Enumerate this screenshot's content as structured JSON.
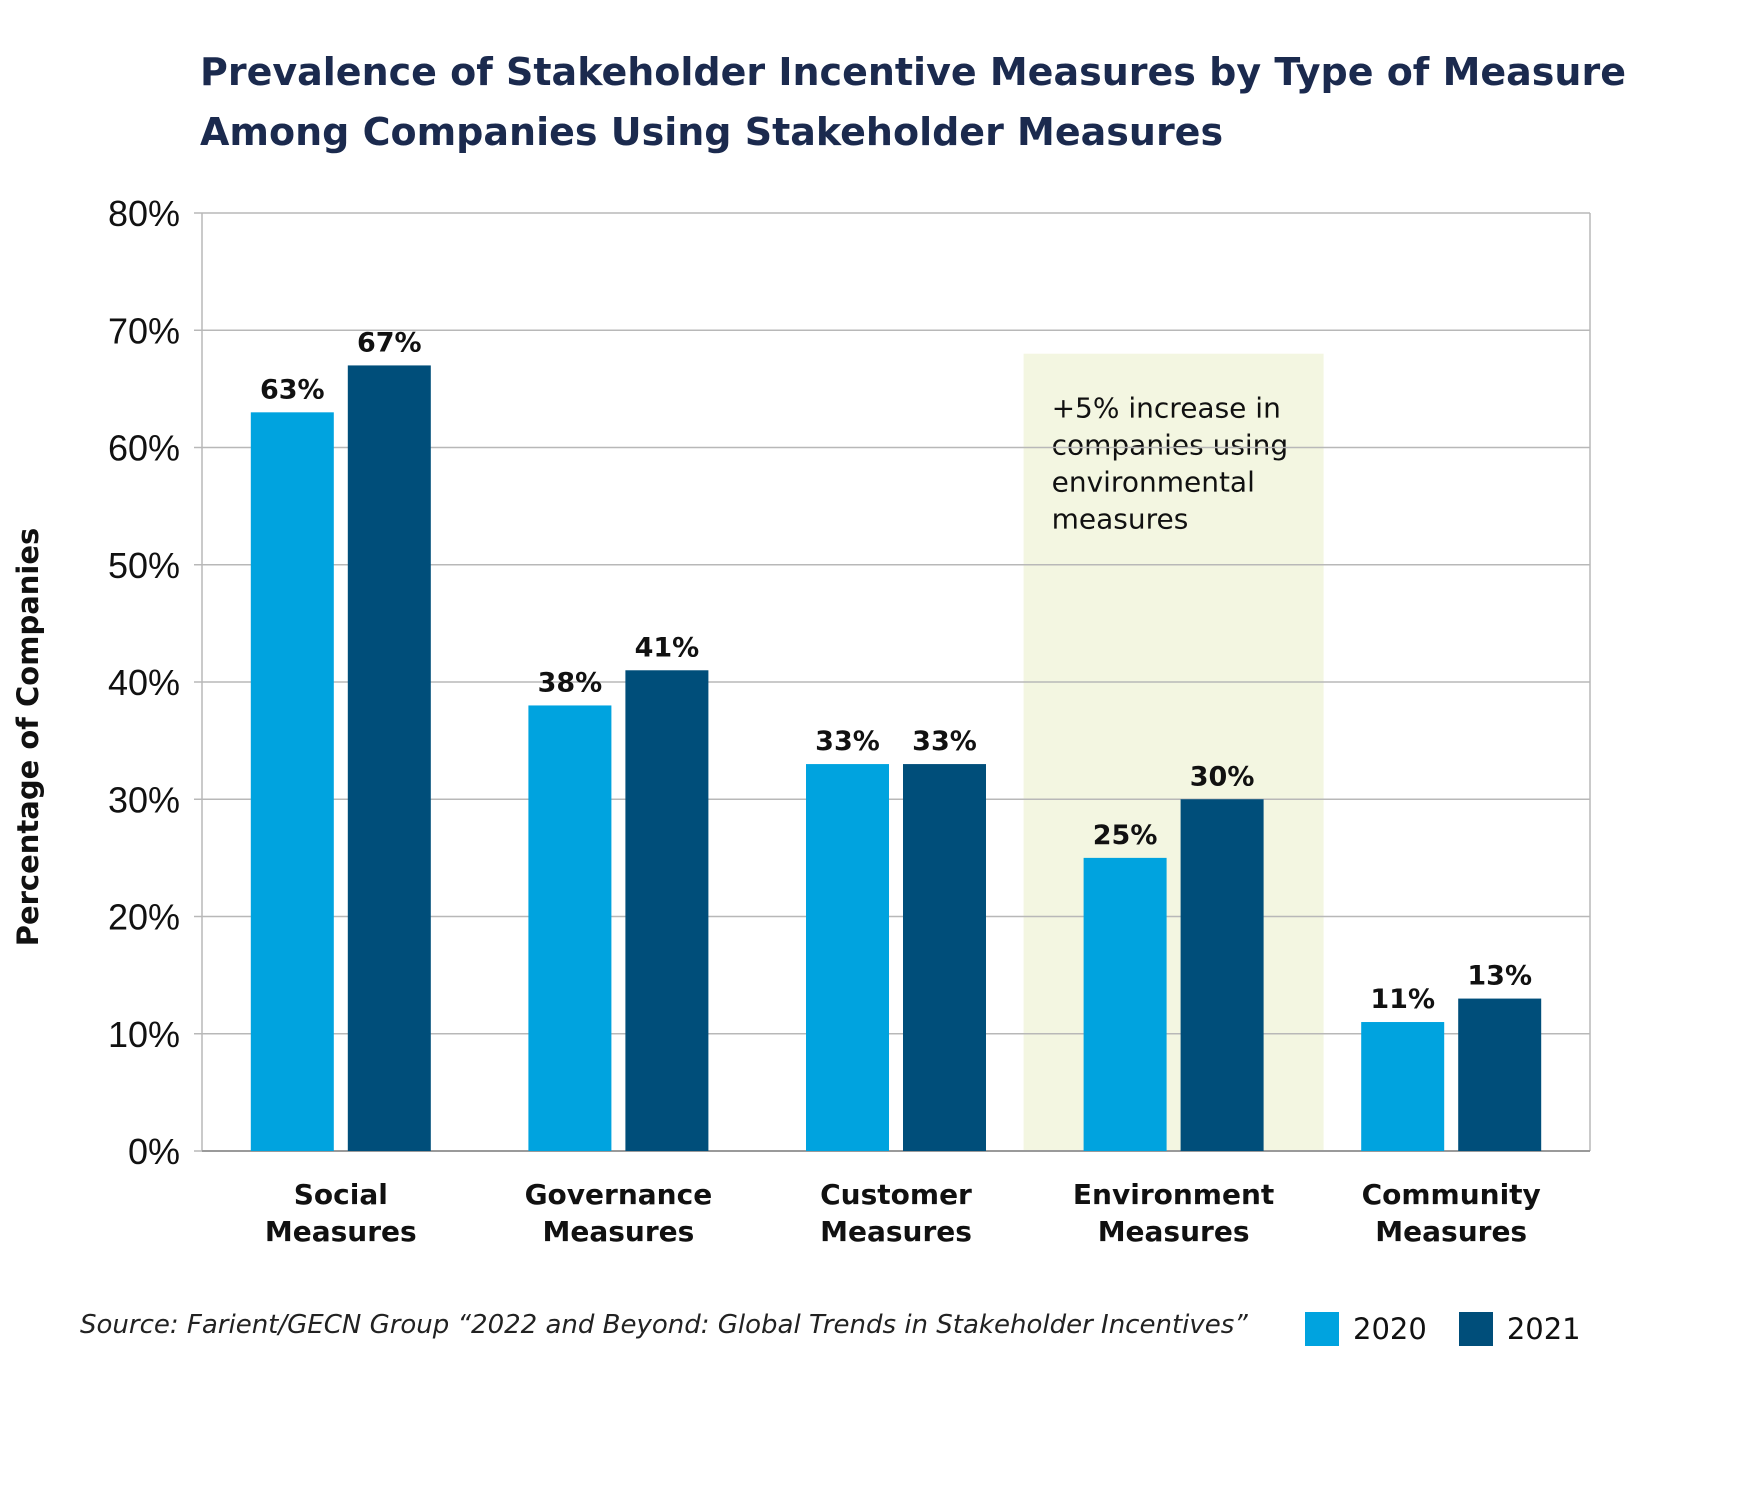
{
  "chart_data": {
    "type": "bar",
    "title": [
      "Prevalence of Stakeholder Incentive Measures by Type of Measure",
      "Among Companies Using Stakeholder Measures"
    ],
    "ylabel": "Percentage of Companies",
    "ylim": [
      0,
      80
    ],
    "yticks": [
      "0%",
      "10%",
      "20%",
      "30%",
      "40%",
      "50%",
      "60%",
      "70%",
      "80%"
    ],
    "categories": [
      [
        "Social",
        "Measures"
      ],
      [
        "Governance",
        "Measures"
      ],
      [
        "Customer",
        "Measures"
      ],
      [
        "Environment",
        "Measures"
      ],
      [
        "Community",
        "Measures"
      ]
    ],
    "series": [
      {
        "name": "2020",
        "color": "#00a3df",
        "values": [
          63,
          38,
          33,
          25,
          11
        ],
        "labels": [
          "63%",
          "38%",
          "33%",
          "25%",
          "11%"
        ]
      },
      {
        "name": "2021",
        "color": "#004e7a",
        "values": [
          67,
          41,
          33,
          30,
          13
        ],
        "labels": [
          "67%",
          "41%",
          "33%",
          "30%",
          "13%"
        ]
      }
    ],
    "grid": true,
    "legend": "bottom-right",
    "annotation": {
      "category_index": 3,
      "lines": [
        "+5% increase in",
        "companies using",
        "environmental",
        "measures"
      ],
      "color": "#f3f6e1",
      "top_value": 68
    },
    "source": "Source: Farient/GECN Group “2022 and Beyond: Global Trends in Stakeholder Incentives”"
  }
}
